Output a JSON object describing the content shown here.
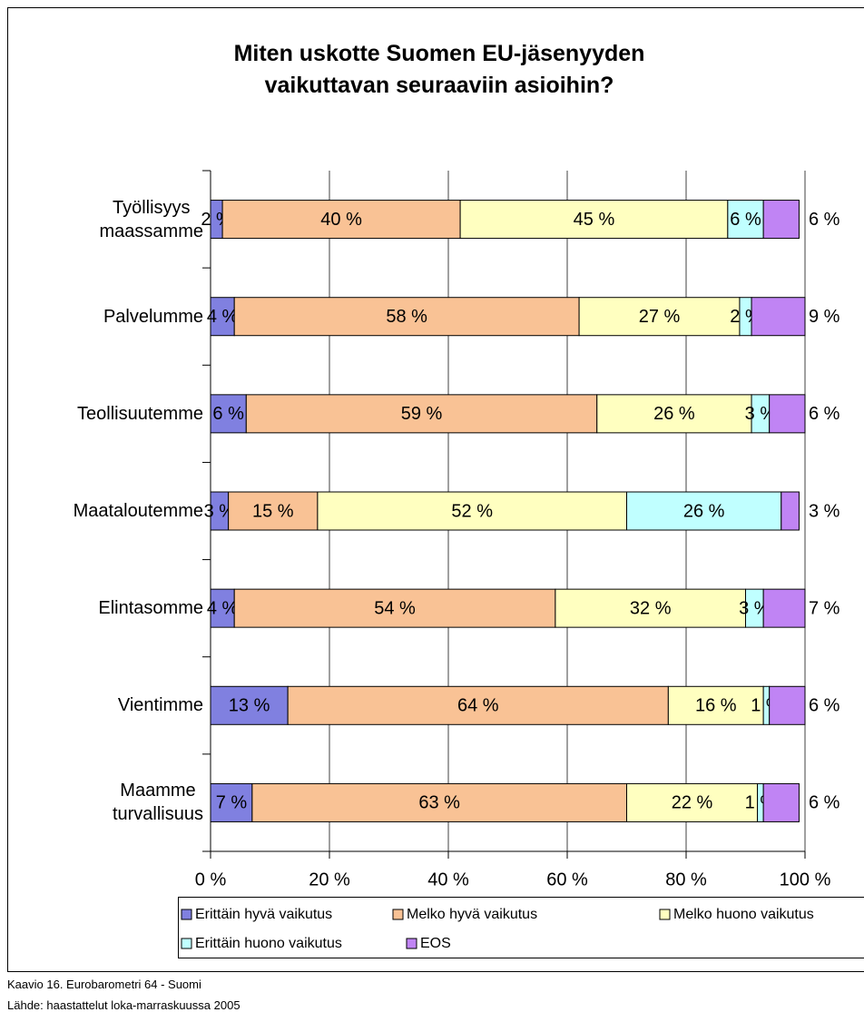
{
  "chart_data": {
    "type": "stacked_barh",
    "title": "Miten uskotte Suomen EU-jäsenyyden\nvaikuttavan seuraaviin asioihin?",
    "categories": [
      "Työllisyys\nmaassamme",
      "Palvelumme",
      "Teollisuutemme",
      "Maataloutemme",
      "Elintasomme",
      "Vientimme",
      "Maamme\nturvallisuus"
    ],
    "series": [
      {
        "name": "Erittäin hyvä vaikutus",
        "color": "#8080e0",
        "values": [
          2,
          4,
          6,
          3,
          4,
          13,
          7
        ],
        "value_labels": [
          "2 %",
          "4 %",
          "6 %",
          "3 %",
          "4 %",
          "13 %",
          "7 %"
        ]
      },
      {
        "name": "Melko hyvä vaikutus",
        "color": "#f9c295",
        "values": [
          40,
          58,
          59,
          15,
          54,
          64,
          63
        ],
        "value_labels": [
          "40 %",
          "58 %",
          "59 %",
          "15 %",
          "54 %",
          "64 %",
          "63 %"
        ]
      },
      {
        "name": "Melko huono vaikutus",
        "color": "#ffffc0",
        "values": [
          45,
          27,
          26,
          52,
          32,
          16,
          22
        ],
        "value_labels": [
          "45 %",
          "27 %",
          "26 %",
          "52 %",
          "32 %",
          "16 %",
          "22 %"
        ]
      },
      {
        "name": "Erittäin huono vaikutus",
        "color": "#c0ffff",
        "values": [
          6,
          2,
          3,
          26,
          3,
          1,
          1
        ],
        "value_labels": [
          "6 %",
          "2 %",
          "3 %",
          "26 %",
          "3 %",
          "1 %",
          "1 %"
        ]
      },
      {
        "name": "EOS",
        "color": "#c084f4",
        "values": [
          6,
          9,
          6,
          3,
          7,
          6,
          6
        ],
        "value_labels": [
          "6 %",
          "9 %",
          "6 %",
          "3 %",
          "7 %",
          "6 %",
          "6 %"
        ]
      }
    ],
    "xlim": [
      0,
      100
    ],
    "xticks": [
      {
        "value": 0,
        "label": "0 %"
      },
      {
        "value": 20,
        "label": "20 %"
      },
      {
        "value": 40,
        "label": "40 %"
      },
      {
        "value": 60,
        "label": "60 %"
      },
      {
        "value": 80,
        "label": "80 %"
      },
      {
        "value": 100,
        "label": "100 %"
      }
    ],
    "grid": true,
    "legend": "bottom",
    "notes": [
      "Kaavio 16. Eurobarometri 64 - Suomi",
      "Lähde: haastattelut loka-marraskuussa 2005"
    ]
  }
}
